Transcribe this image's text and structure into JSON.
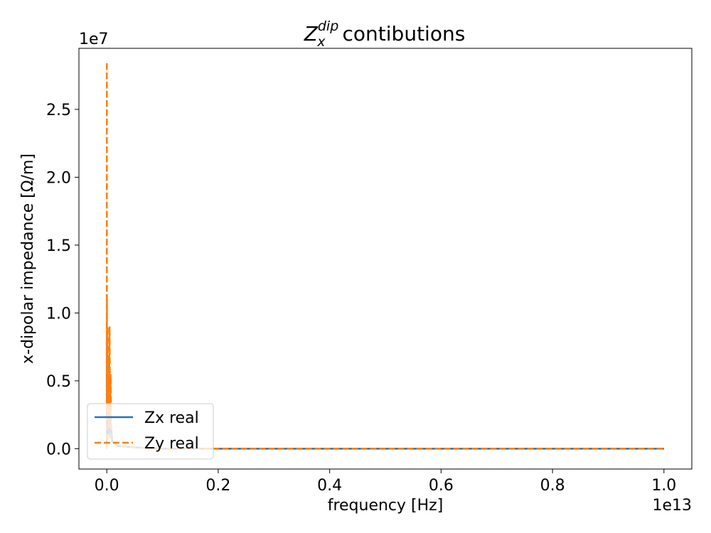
{
  "chart_data": {
    "type": "line",
    "title": "contibutions",
    "title_math": {
      "base": "Z",
      "sub": "x",
      "sup": "dip"
    },
    "xlabel": "frequency [Hz]",
    "ylabel": "x-dipolar impedance [Ω/m]",
    "x_multiplier_label": "1e13",
    "y_multiplier_label": "1e7",
    "x_scale": 10000000000000.0,
    "y_scale": 10000000.0,
    "xlim": [
      -0.05,
      1.05
    ],
    "ylim": [
      -0.15,
      2.95
    ],
    "x_ticks": [
      {
        "value": 0.0,
        "label": "0.0"
      },
      {
        "value": 0.2,
        "label": "0.2"
      },
      {
        "value": 0.4,
        "label": "0.4"
      },
      {
        "value": 0.6,
        "label": "0.6"
      },
      {
        "value": 0.8,
        "label": "0.8"
      },
      {
        "value": 1.0,
        "label": "1.0"
      }
    ],
    "y_ticks": [
      {
        "value": 0.0,
        "label": "0.0"
      },
      {
        "value": 0.5,
        "label": "0.5"
      },
      {
        "value": 1.0,
        "label": "1.0"
      },
      {
        "value": 1.5,
        "label": "1.5"
      },
      {
        "value": 2.0,
        "label": "2.0"
      },
      {
        "value": 2.5,
        "label": "2.5"
      }
    ],
    "grid": false,
    "legend_position": "lower-left",
    "series": [
      {
        "name": "Zx real",
        "color": "#1f77b4",
        "dash": "solid",
        "x": [
          0.0,
          0.0002,
          0.0004,
          0.0006,
          0.0008,
          0.001,
          0.0015,
          0.002,
          0.003,
          0.004,
          0.005,
          0.006,
          0.007,
          0.008,
          0.01,
          0.02,
          0.05,
          0.1,
          0.2,
          0.5,
          1.0
        ],
        "y": [
          0.0,
          0.85,
          0.3,
          0.6,
          0.2,
          0.45,
          0.15,
          0.3,
          0.1,
          0.35,
          0.12,
          0.25,
          0.08,
          0.15,
          0.05,
          0.02,
          0.01,
          0.0,
          0.0,
          0.0,
          0.0
        ]
      },
      {
        "name": "Zy real",
        "color": "#ff7f0e",
        "dash": "dashed",
        "x": [
          0.0,
          0.0001,
          0.0002,
          0.0003,
          0.0005,
          0.0008,
          0.001,
          0.0015,
          0.002,
          0.003,
          0.004,
          0.005,
          0.006,
          0.007,
          0.008,
          0.01,
          0.02,
          0.05,
          0.1,
          0.2,
          0.5,
          1.0
        ],
        "y": [
          0.0,
          2.85,
          0.4,
          1.1,
          0.3,
          0.85,
          0.2,
          0.9,
          0.35,
          0.65,
          0.15,
          0.9,
          0.25,
          0.55,
          0.1,
          0.05,
          0.02,
          0.01,
          0.0,
          0.0,
          0.0,
          0.0
        ]
      },
      {
        "name": "",
        "color": "#d8d8d8",
        "dash": "solid",
        "x": [
          0.0,
          0.0005,
          0.001,
          0.002,
          0.003,
          0.004,
          0.006,
          0.008,
          0.01,
          0.015,
          0.02,
          0.03,
          0.05,
          0.1,
          1.0
        ],
        "y": [
          0.0,
          0.1,
          0.05,
          0.08,
          0.15,
          0.06,
          0.12,
          0.04,
          0.05,
          0.06,
          0.03,
          0.02,
          0.01,
          0.0,
          0.0
        ]
      }
    ]
  }
}
